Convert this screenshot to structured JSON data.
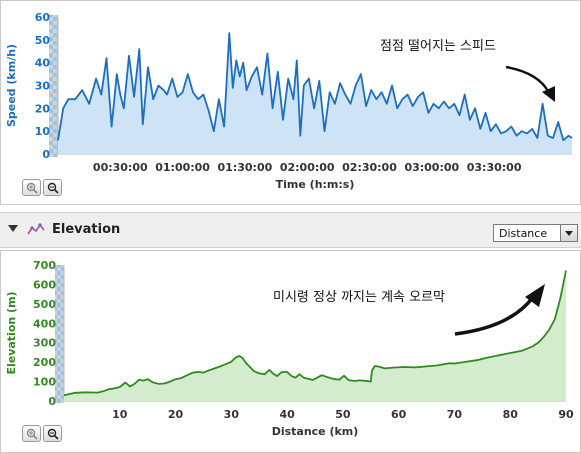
{
  "speed_chart": {
    "zoom_in_icon": "zoom-in-icon",
    "zoom_out_icon": "zoom-out-icon",
    "annotation": "점점 떨어지는 스피드",
    "line_color": "#1a6fc4",
    "fill_color": "#cfe3f7"
  },
  "elevation_header": {
    "title": "Elevation",
    "icon": "elevation-icon",
    "dropdown_value": "Distance"
  },
  "elevation_chart": {
    "zoom_in_icon": "zoom-in-icon",
    "zoom_out_icon": "zoom-out-icon",
    "annotation": "미시령 정상 까지는 계속 오르막",
    "line_color": "#2e8b1e",
    "fill_color": "#d5ebcd"
  },
  "chart_data": [
    {
      "type": "area",
      "xlabel": "Time (h:m:s)",
      "ylabel": "Speed (km/h)",
      "ylim": [
        0,
        60
      ],
      "yticks": [
        0,
        10,
        20,
        30,
        40,
        50,
        60
      ],
      "xlim_seconds": [
        0,
        14850
      ],
      "xtick_labels": [
        "00:30:00",
        "01:00:00",
        "01:30:00",
        "02:00:00",
        "02:30:00",
        "03:00:00",
        "03:30:00"
      ],
      "xtick_seconds": [
        1800,
        3600,
        5400,
        7200,
        9000,
        10800,
        12600
      ],
      "grid": false,
      "x_seconds": [
        0,
        150,
        300,
        500,
        700,
        900,
        1100,
        1250,
        1400,
        1550,
        1700,
        1800,
        1900,
        2050,
        2200,
        2350,
        2450,
        2600,
        2750,
        2900,
        3050,
        3150,
        3300,
        3450,
        3600,
        3750,
        3900,
        4050,
        4200,
        4350,
        4500,
        4650,
        4800,
        4950,
        5050,
        5150,
        5250,
        5350,
        5450,
        5600,
        5750,
        5900,
        6050,
        6200,
        6350,
        6500,
        6650,
        6800,
        6900,
        7000,
        7100,
        7250,
        7400,
        7550,
        7700,
        7850,
        8000,
        8150,
        8300,
        8450,
        8600,
        8750,
        8900,
        9050,
        9200,
        9350,
        9500,
        9650,
        9800,
        9950,
        10100,
        10250,
        10400,
        10550,
        10700,
        10850,
        11000,
        11150,
        11300,
        11450,
        11600,
        11750,
        11900,
        12050,
        12200,
        12350,
        12500,
        12650,
        12800,
        12950,
        13100,
        13250,
        13400,
        13550,
        13700,
        13850,
        14000,
        14150,
        14300,
        14450,
        14600,
        14750,
        14850
      ],
      "series": [
        {
          "values": [
            6,
            20,
            24,
            24,
            28,
            22,
            33,
            26,
            42,
            12,
            35,
            26,
            20,
            43,
            25,
            46,
            13,
            38,
            24,
            30,
            28,
            26,
            33,
            25,
            27,
            35,
            27,
            24,
            26,
            19,
            10,
            24,
            12,
            53,
            29,
            41,
            34,
            40,
            28,
            34,
            38,
            26,
            44,
            20,
            36,
            15,
            33,
            24,
            41,
            8,
            30,
            33,
            20,
            32,
            10,
            27,
            22,
            31,
            26,
            22,
            30,
            35,
            21,
            28,
            24,
            27,
            22,
            30,
            20,
            24,
            26,
            21,
            25,
            27,
            18,
            22,
            20,
            23,
            20,
            22,
            17,
            26,
            15,
            20,
            11,
            18,
            10,
            13,
            9,
            10,
            12,
            8,
            10,
            9,
            11,
            7,
            22,
            8,
            7,
            14,
            6,
            8,
            7
          ]
        }
      ]
    },
    {
      "type": "area",
      "xlabel": "Distance (km)",
      "ylabel": "Elevation (m)",
      "ylim": [
        0,
        700
      ],
      "yticks": [
        0,
        100,
        200,
        300,
        400,
        500,
        600,
        700
      ],
      "xlim": [
        0,
        90
      ],
      "xticks": [
        10,
        20,
        30,
        40,
        50,
        60,
        70,
        80,
        90
      ],
      "grid": false,
      "x": [
        0,
        2,
        4,
        6,
        7,
        8,
        9,
        10,
        11,
        11.8,
        12.5,
        13.5,
        14.2,
        15,
        16,
        17,
        18,
        19,
        20,
        21,
        22,
        23,
        24,
        25,
        26,
        27,
        28,
        29,
        30,
        30.7,
        31.4,
        32,
        32.6,
        33.3,
        34,
        35,
        36,
        36.8,
        37.5,
        38.2,
        39,
        40,
        40.8,
        41.5,
        42.2,
        43,
        43.8,
        44.6,
        45.4,
        46.2,
        47,
        47.8,
        48.6,
        49.4,
        50.2,
        51,
        52,
        53,
        54,
        55,
        55.2,
        55.7,
        56.5,
        57.5,
        59,
        61,
        63,
        65,
        67,
        69,
        70,
        72,
        74,
        76,
        78,
        80,
        82,
        84,
        85,
        86,
        87,
        88,
        89,
        90
      ],
      "series": [
        {
          "values": [
            30,
            42,
            45,
            43,
            50,
            60,
            65,
            72,
            95,
            75,
            85,
            110,
            105,
            112,
            95,
            88,
            90,
            100,
            112,
            118,
            132,
            145,
            150,
            146,
            158,
            168,
            178,
            190,
            202,
            222,
            232,
            222,
            196,
            176,
            155,
            142,
            138,
            160,
            141,
            128,
            148,
            150,
            128,
            120,
            138,
            120,
            115,
            108,
            120,
            133,
            125,
            118,
            112,
            110,
            130,
            108,
            103,
            106,
            104,
            100,
            155,
            180,
            177,
            168,
            172,
            175,
            173,
            178,
            183,
            194,
            193,
            201,
            210,
            224,
            235,
            247,
            258,
            281,
            300,
            330,
            368,
            421,
            530,
            672
          ]
        }
      ]
    }
  ]
}
